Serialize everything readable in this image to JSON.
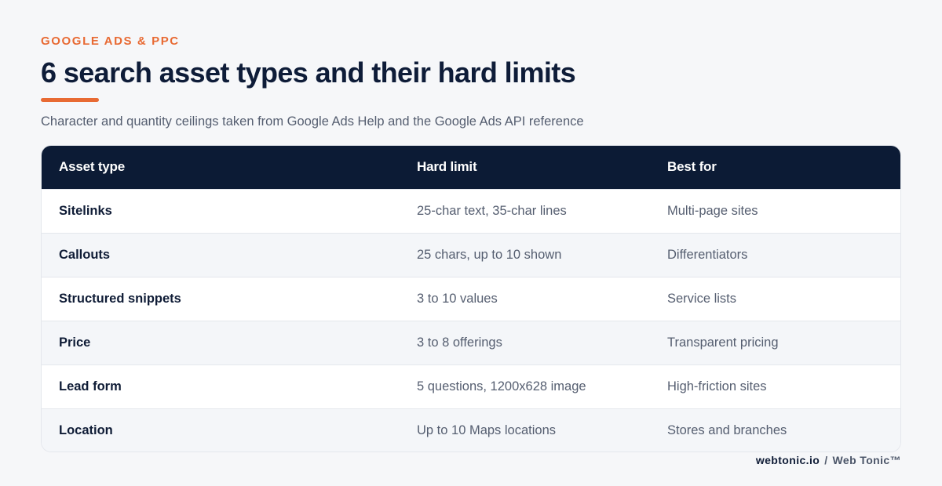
{
  "eyebrow": "GOOGLE ADS & PPC",
  "title": "6 search asset types and their hard limits",
  "subtitle": "Character and quantity ceilings taken from Google Ads Help and the Google Ads API reference",
  "table": {
    "headers": [
      "Asset type",
      "Hard limit",
      "Best for"
    ],
    "rows": [
      [
        "Sitelinks",
        "25-char text, 35-char lines",
        "Multi-page sites"
      ],
      [
        "Callouts",
        "25 chars, up to 10 shown",
        "Differentiators"
      ],
      [
        "Structured snippets",
        "3 to 10 values",
        "Service lists"
      ],
      [
        "Price",
        "3 to 8 offerings",
        "Transparent pricing"
      ],
      [
        "Lead form",
        "5 questions, 1200x628 image",
        "High-friction sites"
      ],
      [
        "Location",
        "Up to 10 Maps locations",
        "Stores and branches"
      ]
    ]
  },
  "footer": {
    "domain": "webtonic.io",
    "separator": "/",
    "brand": "Web Tonic™"
  },
  "colors": {
    "accent": "#e86a33",
    "header_bg": "#0c1b35",
    "title_text": "#0e1c38",
    "body_text": "#555e70",
    "page_bg": "#f6f7f9"
  }
}
